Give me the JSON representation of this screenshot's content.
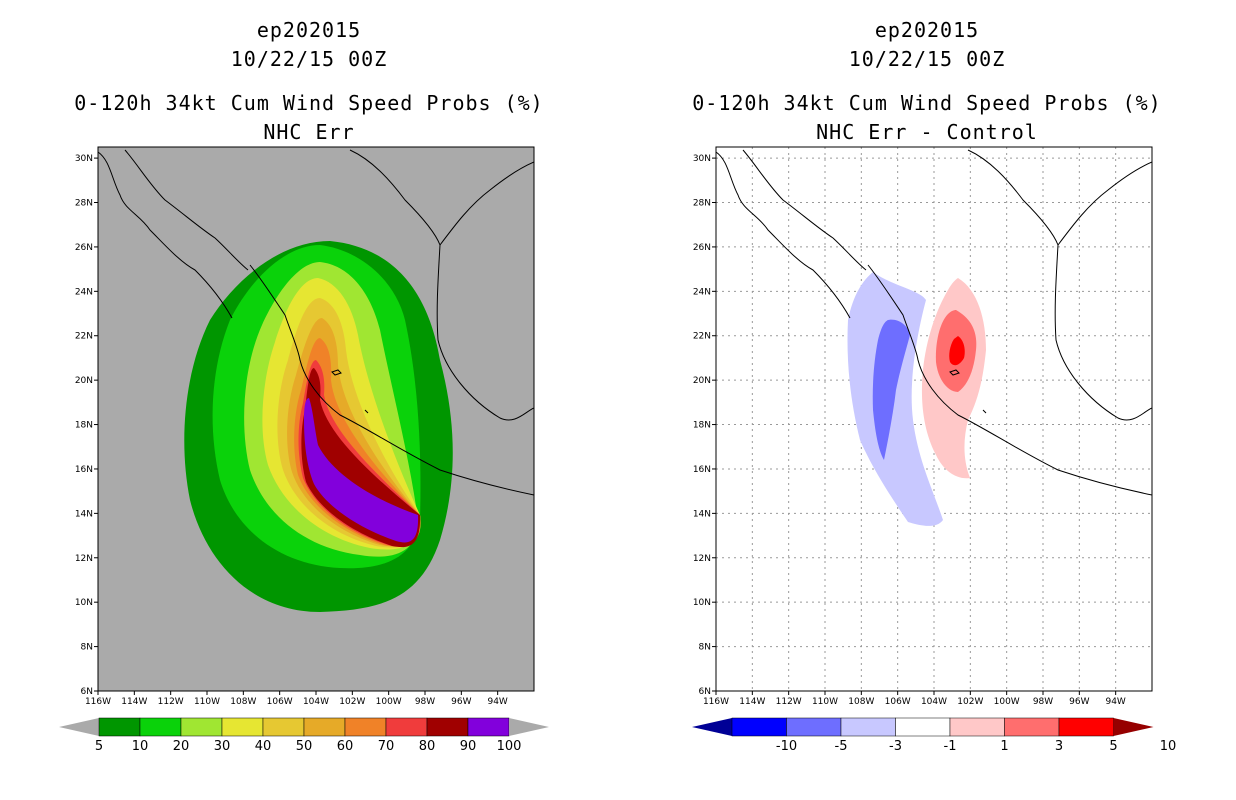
{
  "left": {
    "title_line1": "ep202015",
    "title_line2": "10/22/15 00Z",
    "title_line3": "0-120h 34kt Cum Wind Speed Probs (%)",
    "title_line4": "NHC Err",
    "colorbar": {
      "labels": [
        "5",
        "10",
        "20",
        "30",
        "40",
        "50",
        "60",
        "70",
        "80",
        "90",
        "100"
      ],
      "colors": [
        "#009600",
        "#0ad20a",
        "#a0e632",
        "#e6e632",
        "#e6c832",
        "#e6aa28",
        "#f08228",
        "#f03c3c",
        "#a00000",
        "#8200dc"
      ],
      "under_color": "#aaaaaa",
      "over_color": "#aaaaaa"
    },
    "background_color": "#aaaaaa"
  },
  "right": {
    "title_line1": "ep202015",
    "title_line2": "10/22/15 00Z",
    "title_line3": "0-120h 34kt Cum Wind Speed Probs (%)",
    "title_line4": "NHC Err - Control",
    "colorbar": {
      "labels": [
        "-10",
        "-5",
        "-3",
        "-1",
        "1",
        "3",
        "5",
        "10"
      ],
      "colors": [
        "#0000ff",
        "#6e6eff",
        "#c8c8ff",
        "#ffffff",
        "#ffc8c8",
        "#ff6e6e",
        "#ff0000"
      ],
      "under_color": "#000096",
      "over_color": "#960000"
    }
  },
  "map": {
    "lon_range": [
      -116,
      -92
    ],
    "lat_range": [
      6,
      30.5
    ],
    "lat_labels": [
      "30N",
      "28N",
      "26N",
      "24N",
      "22N",
      "20N",
      "18N",
      "16N",
      "14N",
      "12N",
      "10N",
      "8N",
      "6N"
    ],
    "lon_labels": [
      "116W",
      "114W",
      "112W",
      "110W",
      "108W",
      "106W",
      "104W",
      "102W",
      "100W",
      "98W",
      "96W",
      "94W"
    ]
  }
}
